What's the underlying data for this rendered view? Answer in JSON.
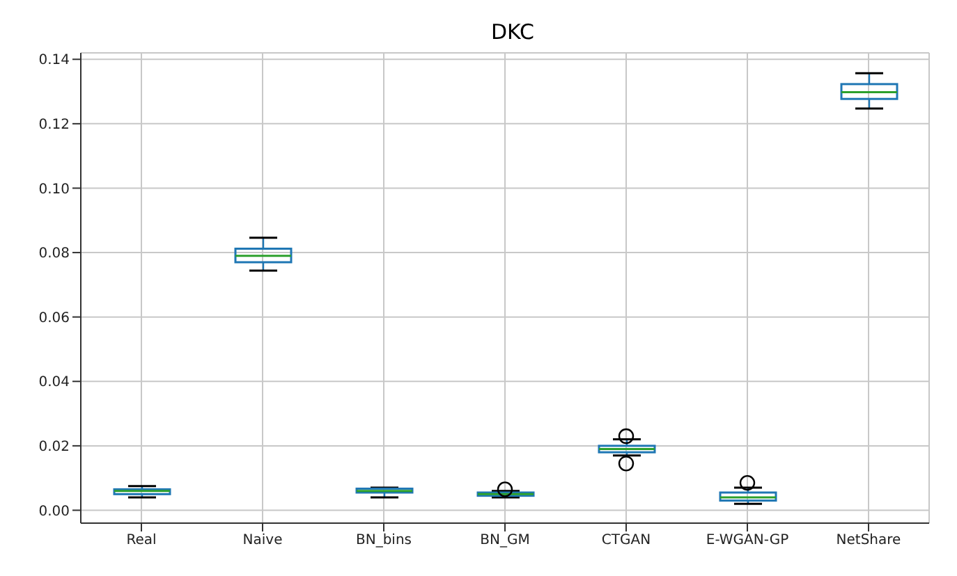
{
  "chart_data": {
    "type": "box",
    "title": "DKC",
    "categories": [
      "Real",
      "Naive",
      "BN_bins",
      "BN_GM",
      "CTGAN",
      "E-WGAN-GP",
      "NetShare"
    ],
    "series": [
      {
        "color": "#1f77b4",
        "boxes": [
          {
            "low": 0.004,
            "q1": 0.005,
            "median": 0.006,
            "q3": 0.0065,
            "high": 0.0075
          },
          {
            "low": 0.0744,
            "q1": 0.077,
            "median": 0.079,
            "q3": 0.0812,
            "high": 0.0846
          },
          {
            "low": 0.004,
            "q1": 0.0055,
            "median": 0.006,
            "q3": 0.0067,
            "high": 0.007
          },
          {
            "low": 0.004,
            "q1": 0.0045,
            "median": 0.005,
            "q3": 0.0055,
            "high": 0.006,
            "outliers": [
              0.0065
            ]
          },
          {
            "low": 0.017,
            "q1": 0.018,
            "median": 0.019,
            "q3": 0.02,
            "high": 0.022,
            "outliers": [
              0.023,
              0.0145
            ]
          },
          {
            "low": 0.002,
            "q1": 0.003,
            "median": 0.004,
            "q3": 0.0055,
            "high": 0.007,
            "outliers": [
              0.0085
            ]
          },
          {
            "low": 0.1247,
            "q1": 0.1277,
            "median": 0.1298,
            "q3": 0.1323,
            "high": 0.1357
          }
        ]
      }
    ],
    "ylim": [
      -0.004,
      0.142
    ],
    "yticks": [
      {
        "value": 0,
        "label": "0.00"
      },
      0.02,
      0.04,
      0.06,
      0.08,
      {
        "value": 0.1,
        "label": "0.10"
      },
      0.12,
      0.14
    ],
    "grid": true
  }
}
